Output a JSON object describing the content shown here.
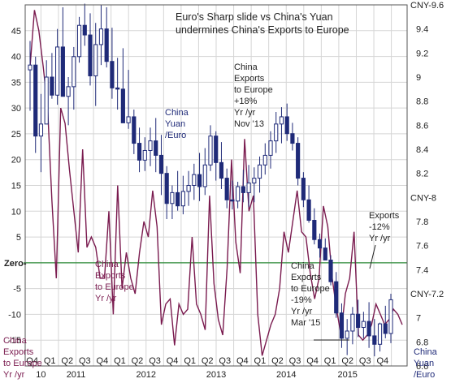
{
  "chart_data": {
    "type": "candlestick+line",
    "title_lines": [
      "Euro's Sharp slide vs China's Yuan",
      "undermines China's Exports to Europe"
    ],
    "left_axis": {
      "ticks": [
        45,
        40,
        35,
        30,
        25,
        20,
        15,
        10,
        5,
        0,
        -5,
        -10,
        -15
      ],
      "tick_labels": [
        "45",
        "40",
        "35",
        "30",
        "25",
        "20",
        "15",
        "10",
        "5",
        "Zero-",
        "-5",
        "-10",
        "-15"
      ],
      "range": [
        -20,
        50
      ]
    },
    "right_axis": {
      "ticks": [
        9.6,
        9.4,
        9.2,
        9,
        8.8,
        8.6,
        8.4,
        8.2,
        8,
        7.8,
        7.6,
        7.4,
        7.2,
        7,
        6.8,
        6.6
      ],
      "tick_labels": [
        "CNY-9.6",
        "9.4",
        "9.2",
        "9",
        "8.8",
        "8.6",
        "8.4",
        "8.2",
        "CNY-8",
        "7.8",
        "7.6",
        "7.4",
        "CNY-7.2",
        "7",
        "6.8",
        "6.6"
      ],
      "range": [
        6.6,
        9.6
      ]
    },
    "x_axis": {
      "quarter_labels": [
        "Q4",
        "Q1",
        "Q2",
        "Q3",
        "Q4",
        "Q1",
        "Q2",
        "Q3",
        "Q4",
        "Q1",
        "Q2",
        "Q3",
        "Q4",
        "Q1",
        "Q2",
        "Q3",
        "Q4",
        "Q1",
        "Q2",
        "Q3",
        "Q4"
      ],
      "year_labels": [
        "10",
        "2011",
        "2012",
        "2013",
        "2014",
        "2015"
      ]
    },
    "zero_line_label": "Zero-",
    "series": [
      {
        "name": "China Exports to Europe Yr /yr",
        "axis": "left",
        "color": "#7a1b4f",
        "type": "line",
        "values": [
          38,
          49,
          45,
          38,
          30,
          12,
          -3,
          30,
          27,
          18,
          10,
          2,
          22,
          3,
          5,
          3,
          -3,
          -3,
          10,
          -10,
          15,
          -5,
          2,
          -3,
          -6,
          2,
          8,
          5,
          14,
          7,
          -12,
          -8,
          -7,
          -16,
          -8,
          -10,
          -9,
          5,
          -8,
          -10,
          -13,
          13,
          -4,
          -11,
          -14,
          -1,
          20,
          4,
          -2,
          24,
          10,
          13,
          -10,
          -18,
          -15,
          -12,
          -10,
          -5,
          6,
          2,
          8,
          14,
          6,
          5,
          -2,
          -7,
          -3,
          11,
          7,
          -3,
          -9,
          -14,
          -6,
          -3,
          6,
          -14,
          -15,
          -14,
          -12,
          -8,
          -10,
          -12,
          -11,
          -9,
          -10,
          -12
        ]
      },
      {
        "name": "China Yuan /Euro",
        "axis": "right",
        "color": "#1f2a78",
        "type": "candlestick",
        "ohlc": [
          [
            9.06,
            9.3,
            8.72,
            9.1
          ],
          [
            9.1,
            9.17,
            8.37,
            8.51
          ],
          [
            8.51,
            8.86,
            8.21,
            8.61
          ],
          [
            8.61,
            9.14,
            8.61,
            9
          ],
          [
            9,
            9.2,
            8.82,
            8.85
          ],
          [
            8.85,
            9.4,
            8.77,
            9.25
          ],
          [
            9.25,
            9.58,
            8.88,
            8.84
          ],
          [
            8.84,
            9.0,
            8.6,
            8.92
          ],
          [
            8.92,
            9.25,
            8.73,
            9.17
          ],
          [
            9.17,
            9.5,
            9.12,
            9.43
          ],
          [
            9.43,
            9.61,
            9.26,
            9.35
          ],
          [
            9.35,
            9.53,
            8.93,
            9.01
          ],
          [
            9.01,
            9.45,
            8.76,
            9.27
          ],
          [
            9.27,
            9.6,
            9.1,
            9.4
          ],
          [
            9.4,
            9.58,
            9.08,
            9.13
          ],
          [
            9.13,
            9.41,
            8.82,
            8.91
          ],
          [
            8.91,
            9.16,
            8.73,
            8.9
          ],
          [
            8.9,
            9.24,
            8.69,
            8.62
          ],
          [
            8.62,
            9.06,
            8.57,
            8.67
          ],
          [
            8.67,
            8.73,
            8.36,
            8.45
          ],
          [
            8.45,
            8.58,
            8.21,
            8.31
          ],
          [
            8.31,
            8.5,
            8.22,
            8.39
          ],
          [
            8.39,
            8.58,
            8.26,
            8.47
          ],
          [
            8.47,
            8.66,
            8.21,
            8.35
          ],
          [
            8.35,
            8.52,
            8.02,
            8.2
          ],
          [
            8.2,
            8.26,
            7.82,
            7.95
          ],
          [
            7.95,
            8.1,
            7.82,
            8.04
          ],
          [
            8.04,
            8.22,
            7.89,
            7.93
          ],
          [
            7.93,
            8.18,
            7.86,
            8.05
          ],
          [
            8.05,
            8.22,
            7.93,
            8.1
          ],
          [
            8.1,
            8.28,
            7.98,
            8.19
          ],
          [
            8.19,
            8.37,
            7.97,
            8.09
          ],
          [
            8.09,
            8.41,
            8.02,
            8.27
          ],
          [
            8.27,
            8.6,
            8.22,
            8.51
          ],
          [
            8.51,
            8.55,
            8.14,
            8.29
          ],
          [
            8.29,
            8.46,
            8.07,
            8.16
          ],
          [
            8.16,
            8.24,
            7.91,
            7.98
          ],
          [
            7.98,
            8.14,
            7.9,
            7.97
          ],
          [
            7.97,
            8.13,
            7.91,
            8.09
          ],
          [
            8.09,
            8.23,
            7.96,
            8.04
          ],
          [
            8.04,
            8.27,
            7.92,
            8.12
          ],
          [
            8.12,
            8.25,
            7.96,
            8.16
          ],
          [
            8.16,
            8.34,
            8.04,
            8.27
          ],
          [
            8.27,
            8.45,
            8.19,
            8.35
          ],
          [
            8.35,
            8.55,
            8.24,
            8.47
          ],
          [
            8.47,
            8.71,
            8.37,
            8.61
          ],
          [
            8.61,
            8.75,
            8.45,
            8.67
          ],
          [
            8.67,
            8.78,
            8.47,
            8.53
          ],
          [
            8.53,
            8.62,
            8.39,
            8.45
          ],
          [
            8.45,
            8.5,
            8.1,
            8.16
          ],
          [
            8.16,
            8.21,
            7.92,
            7.98
          ],
          [
            7.98,
            8.1,
            7.79,
            7.81
          ],
          [
            7.81,
            7.91,
            7.61,
            7.65
          ],
          [
            7.65,
            7.7,
            7.5,
            7.58
          ],
          [
            7.58,
            7.66,
            7.48,
            7.48
          ],
          [
            7.48,
            7.52,
            7.27,
            7.3
          ],
          [
            7.3,
            7.38,
            7.0,
            7.04
          ],
          [
            7.04,
            7.12,
            6.75,
            6.83
          ],
          [
            6.83,
            6.99,
            6.69,
            6.89
          ],
          [
            6.89,
            7.09,
            6.78,
            7.03
          ],
          [
            7.03,
            7.15,
            6.84,
            6.92
          ],
          [
            6.92,
            7.05,
            6.83,
            6.97
          ],
          [
            6.97,
            7.13,
            6.75,
            6.85
          ],
          [
            6.85,
            6.99,
            6.68,
            6.78
          ],
          [
            6.78,
            6.96,
            6.72,
            6.95
          ],
          [
            6.95,
            7.1,
            6.83,
            6.87
          ],
          [
            6.87,
            7.2,
            6.79,
            7.15
          ]
        ]
      }
    ],
    "annotations": [
      {
        "lines": [
          "China",
          "Exports",
          "to Europe",
          "+18%",
          "Yr /yr",
          "Nov '13"
        ],
        "color": "black"
      },
      {
        "lines": [
          "China",
          "Yuan",
          "/Euro"
        ],
        "color": "blue"
      },
      {
        "lines": [
          "China",
          "Exports",
          "to Europe",
          "Yr /yr"
        ],
        "color": "purple"
      },
      {
        "lines": [
          "China",
          "Exports",
          "to Europe",
          "-19%",
          "Yr /yr",
          "Mar '15"
        ],
        "color": "black"
      },
      {
        "lines": [
          "Exports",
          "-12%",
          "Yr /yr"
        ],
        "color": "black"
      },
      {
        "lines": [
          "China",
          "Exports",
          "to Europe",
          "Yr /yr"
        ],
        "color": "purple"
      },
      {
        "lines": [
          "China",
          "Yuan",
          "/Euro"
        ],
        "color": "blue"
      }
    ],
    "colors": {
      "exports_line": "#7a1b4f",
      "yuan_euro": "#1f2a78",
      "zero_line": "#2e8b3a",
      "grid": "#d5d5d5"
    }
  }
}
